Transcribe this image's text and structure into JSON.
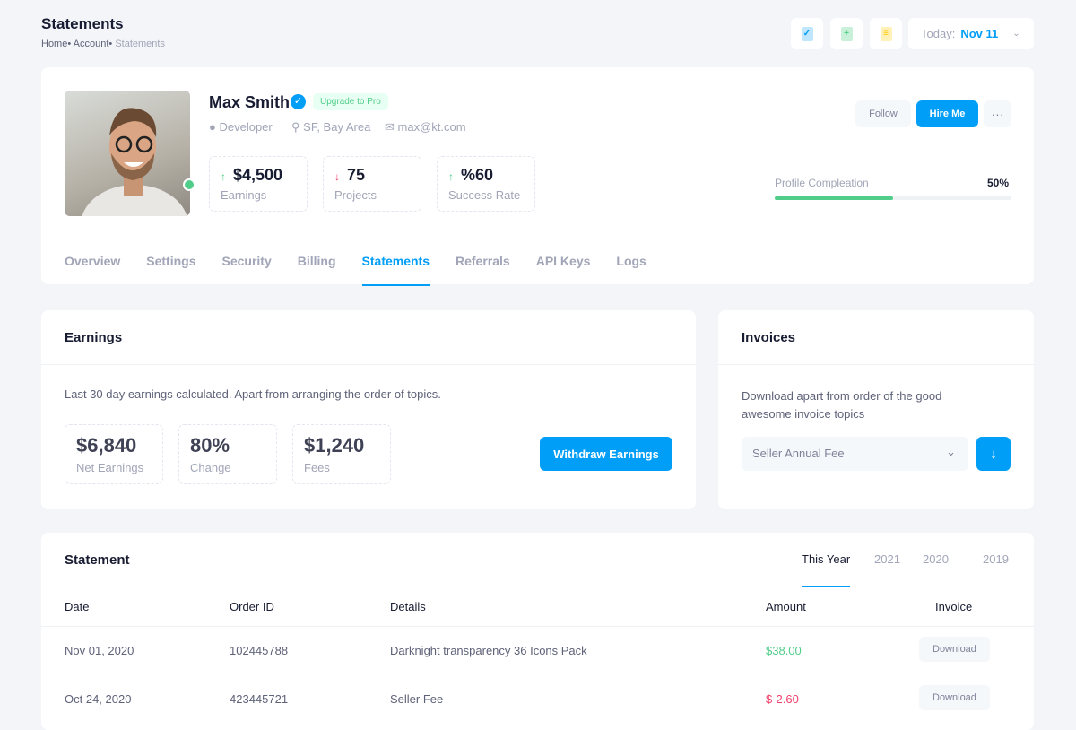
{
  "page": {
    "title": "Statements",
    "breadcrumb": [
      "Home",
      "Account",
      "Statements"
    ]
  },
  "toolbar": {
    "icons": [
      "file-check-icon",
      "file-add-icon",
      "file-text-icon"
    ],
    "date_label": "Today:",
    "date_value": "Nov 11"
  },
  "profile": {
    "name": "Max Smith",
    "badge": "Upgrade to Pro",
    "role": "Developer",
    "location": "SF, Bay Area",
    "email": "max@kt.com",
    "stats": [
      {
        "value": "$4,500",
        "label": "Earnings",
        "trend": "up"
      },
      {
        "value": "75",
        "label": "Projects",
        "trend": "down"
      },
      {
        "value": "%60",
        "label": "Success Rate",
        "trend": "up"
      }
    ],
    "follow": "Follow",
    "hire": "Hire Me",
    "completion_label": "Profile Compleation",
    "completion_value": "50%",
    "completion_percent": 50
  },
  "tabs": [
    "Overview",
    "Settings",
    "Security",
    "Billing",
    "Statements",
    "Referrals",
    "API Keys",
    "Logs"
  ],
  "active_tab": "Statements",
  "earnings": {
    "title": "Earnings",
    "desc": "Last 30 day earnings calculated. Apart from arranging the order of topics.",
    "items": [
      {
        "value": "$6,840",
        "label": "Net Earnings"
      },
      {
        "value": "80%",
        "label": "Change"
      },
      {
        "value": "$1,240",
        "label": "Fees"
      }
    ],
    "button": "Withdraw Earnings"
  },
  "invoices": {
    "title": "Invoices",
    "desc": "Download apart from order of the good awesome invoice topics",
    "select": "Seller Annual Fee"
  },
  "statement": {
    "title": "Statement",
    "years": [
      "This Year",
      "2021",
      "2020",
      "2019"
    ],
    "columns": [
      "Date",
      "Order ID",
      "Details",
      "Amount",
      "Invoice"
    ],
    "rows": [
      {
        "date": "Nov 01, 2020",
        "order": "102445788",
        "details": "Darknight transparency 36 Icons Pack",
        "amount": "$38.00",
        "invoice": "Download"
      },
      {
        "date": "Oct 24, 2020",
        "order": "423445721",
        "details": "Seller Fee",
        "amount": "$-2.60",
        "invoice": "Download"
      }
    ]
  },
  "colors": {
    "primary": "#009ef7",
    "success": "#50cd89",
    "danger": "#f1416c"
  }
}
